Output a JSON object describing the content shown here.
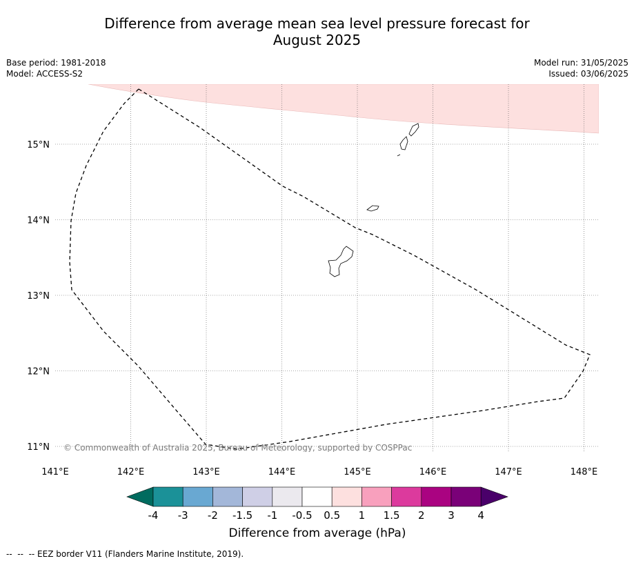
{
  "title_line1": "Difference from average mean sea level pressure forecast for",
  "title_line2": "August 2025",
  "meta_left": {
    "base_period": "Base period: 1981-2018",
    "model": "Model: ACCESS-S2"
  },
  "meta_right": {
    "model_run": "Model run: 31/05/2025",
    "issued": "Issued: 03/06/2025"
  },
  "map": {
    "lon_labels": [
      "141°E",
      "142°E",
      "143°E",
      "144°E",
      "145°E",
      "146°E",
      "147°E",
      "148°E"
    ],
    "lat_labels": [
      "15°N",
      "14°N",
      "13°N",
      "12°N",
      "11°N"
    ],
    "copyright": "© Commonwealth of Australia 2025, Bureau of Meteorology, supported by COSPPac",
    "shading_color": "#fde0df",
    "eez_label": "EEZ border"
  },
  "colorbar": {
    "label": "Difference from average (hPa)",
    "tick_labels": [
      "-4",
      "-3",
      "-2",
      "-1.5",
      "-1",
      "-0.5",
      "0.5",
      "1",
      "1.5",
      "2",
      "3",
      "4"
    ],
    "colors": [
      "#006b5f",
      "#1b9198",
      "#69a8d2",
      "#a3b7d9",
      "#cfcfe6",
      "#ebe9ee",
      "#ffffff",
      "#fde0df",
      "#f8a0bd",
      "#dc3a9d",
      "#aa0381",
      "#7a0178",
      "#4a006a"
    ]
  },
  "footnote": "--  --  -- EEZ border V11 (Flanders Marine Institute, 2019)."
}
